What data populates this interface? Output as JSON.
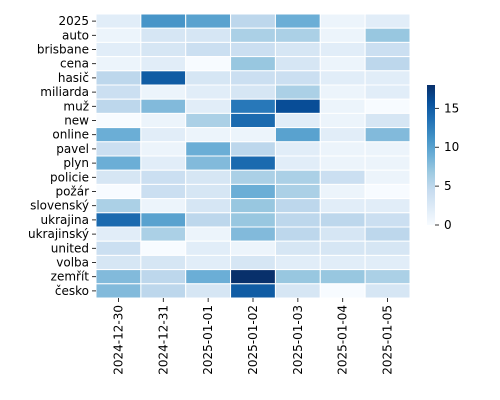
{
  "chart_data": {
    "type": "heatmap",
    "title": "",
    "xlabel": "",
    "ylabel": "",
    "x_categories": [
      "2024-12-30",
      "2024-12-31",
      "2025-01-01",
      "2025-01-02",
      "2025-01-03",
      "2025-01-04",
      "2025-01-05"
    ],
    "y_categories": [
      "2025",
      "auto",
      "brisbane",
      "cena",
      "hasič",
      "miliarda",
      "muž",
      "new",
      "online",
      "pavel",
      "plyn",
      "policie",
      "požár",
      "slovenský",
      "ukrajina",
      "ukrajinský",
      "united",
      "volba",
      "zemřít",
      "česko"
    ],
    "values": [
      [
        2,
        11,
        10,
        5,
        9,
        1,
        2
      ],
      [
        1,
        3,
        3,
        6,
        6,
        1,
        7
      ],
      [
        2,
        3,
        4,
        4,
        3,
        2,
        4
      ],
      [
        1,
        2,
        0,
        7,
        3,
        1,
        5
      ],
      [
        5,
        15,
        3,
        4,
        4,
        2,
        2
      ],
      [
        4,
        1,
        2,
        3,
        6,
        1,
        2
      ],
      [
        5,
        8,
        2,
        13,
        16,
        1,
        0
      ],
      [
        0,
        1,
        6,
        14,
        2,
        1,
        3
      ],
      [
        9,
        2,
        1,
        1,
        10,
        2,
        8
      ],
      [
        4,
        1,
        9,
        5,
        2,
        1,
        1
      ],
      [
        9,
        2,
        8,
        14,
        2,
        1,
        1
      ],
      [
        3,
        4,
        3,
        6,
        6,
        4,
        1
      ],
      [
        0,
        4,
        3,
        9,
        6,
        1,
        0
      ],
      [
        6,
        1,
        3,
        7,
        5,
        2,
        2
      ],
      [
        14,
        10,
        5,
        7,
        5,
        5,
        4
      ],
      [
        2,
        6,
        1,
        8,
        5,
        3,
        5
      ],
      [
        4,
        0,
        2,
        1,
        3,
        3,
        3
      ],
      [
        3,
        3,
        2,
        3,
        2,
        2,
        2
      ],
      [
        8,
        5,
        9,
        18,
        7,
        7,
        6
      ],
      [
        8,
        5,
        3,
        15,
        3,
        0,
        3
      ]
    ],
    "colorbar": {
      "min": 0,
      "max": 18,
      "ticks": [
        0,
        5,
        10,
        15
      ]
    },
    "colormap": [
      "#f7fbff",
      "#deebf7",
      "#c6dbef",
      "#9ecae1",
      "#6baed6",
      "#4292c6",
      "#2171b5",
      "#08519c",
      "#08306b"
    ],
    "grid": false
  }
}
